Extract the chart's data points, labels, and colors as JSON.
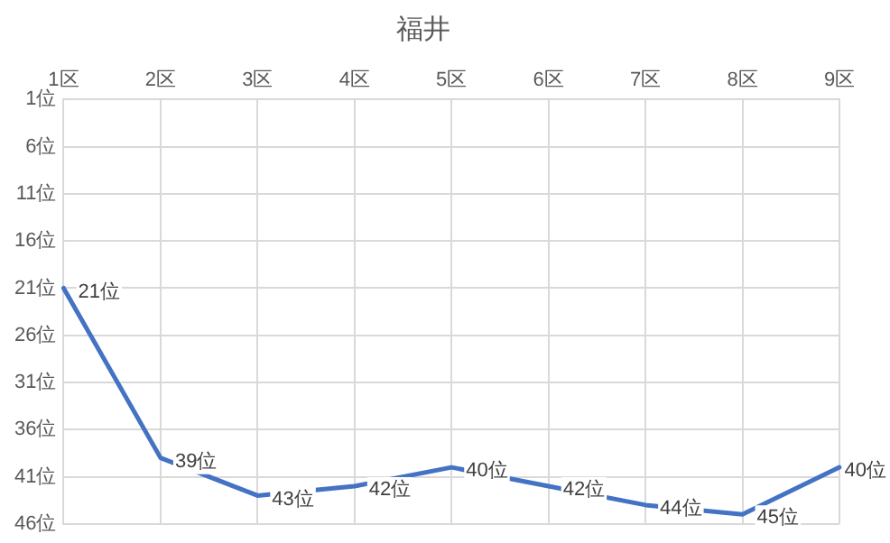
{
  "chart_data": {
    "type": "line",
    "title": "福井",
    "categories": [
      "1区",
      "2区",
      "3区",
      "4区",
      "5区",
      "6区",
      "7区",
      "8区",
      "9区"
    ],
    "values": [
      21,
      39,
      43,
      42,
      40,
      42,
      44,
      45,
      40
    ],
    "value_labels": [
      "21位",
      "39位",
      "43位",
      "42位",
      "40位",
      "42位",
      "44位",
      "45位",
      "40位"
    ],
    "color": "#4472c4",
    "marker": "none",
    "grid": true,
    "ylim": [
      46,
      1
    ],
    "yticks": [
      {
        "value": 1,
        "label": "1位"
      },
      {
        "value": 6,
        "label": "6位"
      },
      {
        "value": 11,
        "label": "11位"
      },
      {
        "value": 16,
        "label": "16位"
      },
      {
        "value": 21,
        "label": "21位"
      },
      {
        "value": 26,
        "label": "26位"
      },
      {
        "value": 31,
        "label": "31位"
      },
      {
        "value": 36,
        "label": "36位"
      },
      {
        "value": 41,
        "label": "41位"
      },
      {
        "value": 46,
        "label": "46位"
      }
    ]
  }
}
